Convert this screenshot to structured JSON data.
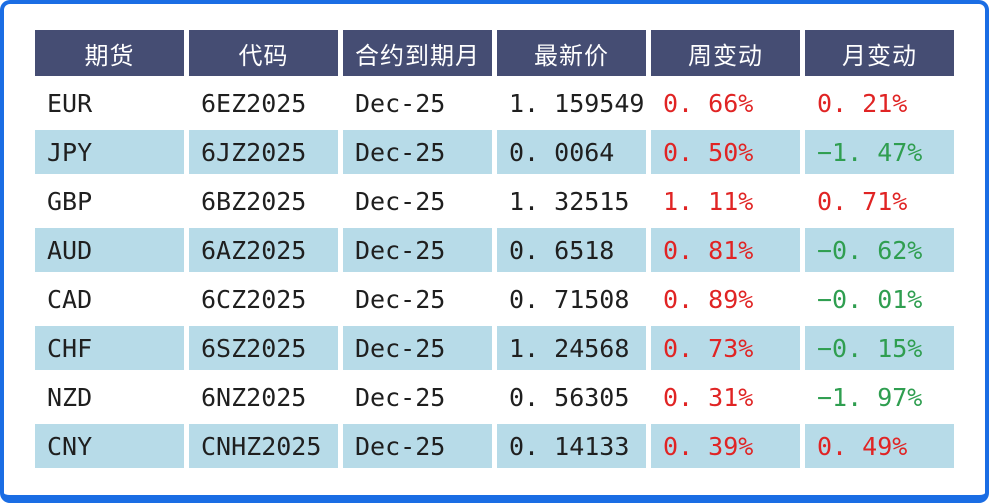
{
  "colors": {
    "frame_border": "#1a6de4",
    "header_bg": "#454d73",
    "header_text": "#ffffff",
    "row_alt_bg": "#b7dbe8",
    "text": "#1f1f1f",
    "positive": "#e02424",
    "negative": "#2f9e50"
  },
  "chart_data": {
    "type": "table",
    "columns": [
      "期货",
      "代码",
      "合约到期月",
      "最新价",
      "周变动",
      "月变动"
    ],
    "rows": [
      {
        "currency": "EUR",
        "code": "6EZ2025",
        "expiry": "Dec-25",
        "price": "1. 159549",
        "price_value": 1.159549,
        "week_change": "0. 66%",
        "week_change_pct": 0.66,
        "week_dir": "up",
        "month_change": "0. 21%",
        "month_change_pct": 0.21,
        "month_dir": "up"
      },
      {
        "currency": "JPY",
        "code": "6JZ2025",
        "expiry": "Dec-25",
        "price": "0. 0064",
        "price_value": 0.0064,
        "week_change": "0. 50%",
        "week_change_pct": 0.5,
        "week_dir": "up",
        "month_change": "−1. 47%",
        "month_change_pct": -1.47,
        "month_dir": "down"
      },
      {
        "currency": "GBP",
        "code": "6BZ2025",
        "expiry": "Dec-25",
        "price": "1. 32515",
        "price_value": 1.32515,
        "week_change": "1. 11%",
        "week_change_pct": 1.11,
        "week_dir": "up",
        "month_change": "0. 71%",
        "month_change_pct": 0.71,
        "month_dir": "up"
      },
      {
        "currency": "AUD",
        "code": "6AZ2025",
        "expiry": "Dec-25",
        "price": "0. 6518",
        "price_value": 0.6518,
        "week_change": "0. 81%",
        "week_change_pct": 0.81,
        "week_dir": "up",
        "month_change": "−0. 62%",
        "month_change_pct": -0.62,
        "month_dir": "down"
      },
      {
        "currency": "CAD",
        "code": "6CZ2025",
        "expiry": "Dec-25",
        "price": "0. 71508",
        "price_value": 0.71508,
        "week_change": "0. 89%",
        "week_change_pct": 0.89,
        "week_dir": "up",
        "month_change": "−0. 01%",
        "month_change_pct": -0.01,
        "month_dir": "down"
      },
      {
        "currency": "CHF",
        "code": "6SZ2025",
        "expiry": "Dec-25",
        "price": "1. 24568",
        "price_value": 1.24568,
        "week_change": "0. 73%",
        "week_change_pct": 0.73,
        "week_dir": "up",
        "month_change": "−0. 15%",
        "month_change_pct": -0.15,
        "month_dir": "down"
      },
      {
        "currency": "NZD",
        "code": "6NZ2025",
        "expiry": "Dec-25",
        "price": "0. 56305",
        "price_value": 0.56305,
        "week_change": "0. 31%",
        "week_change_pct": 0.31,
        "week_dir": "up",
        "month_change": "−1. 97%",
        "month_change_pct": -1.97,
        "month_dir": "down"
      },
      {
        "currency": "CNY",
        "code": "CNHZ2025",
        "expiry": "Dec-25",
        "price": "0. 14133",
        "price_value": 0.14133,
        "week_change": "0. 39%",
        "week_change_pct": 0.39,
        "week_dir": "up",
        "month_change": "0. 49%",
        "month_change_pct": 0.49,
        "month_dir": "up"
      }
    ]
  }
}
